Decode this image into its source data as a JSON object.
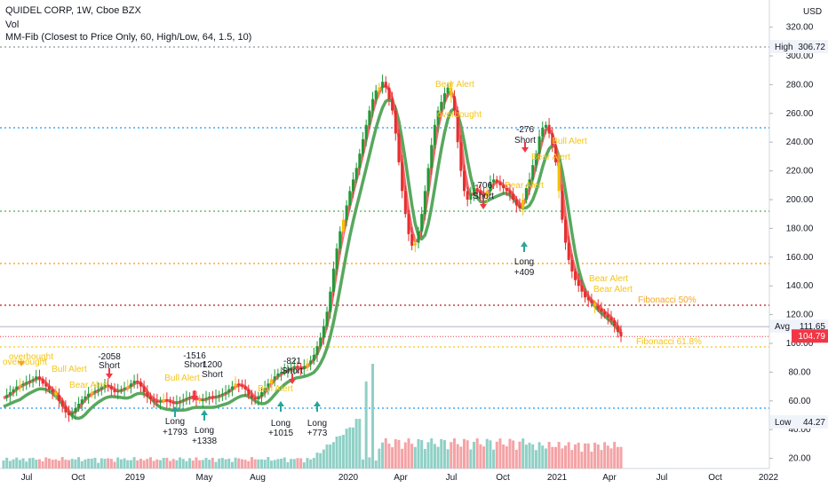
{
  "header": {
    "title": "QUIDEL CORP, 1W, Cboe BZX",
    "line2": "Vol",
    "line3": "MM-Fib (Closest to Price Only, 60, High/Low, 64, 1.5, 10)",
    "currency": "USD"
  },
  "price_axis": {
    "ticks": [
      "320.00",
      "300.00",
      "280.00",
      "260.00",
      "240.00",
      "220.00",
      "200.00",
      "180.00",
      "160.00",
      "140.00",
      "120.00",
      "100.00",
      "80.00",
      "60.00",
      "40.00",
      "20.00"
    ],
    "high_label": "High",
    "high_value": "306.72",
    "avg_label": "Avg",
    "avg_value": "111.65",
    "last_value": "104.79",
    "low_label": "Low",
    "low_value": "44.27"
  },
  "time_axis": {
    "ticks": [
      "Jul",
      "Oct",
      "2019",
      "May",
      "Aug",
      "2020",
      "Apr",
      "Jul",
      "Oct",
      "2021",
      "Apr",
      "Jul",
      "Oct",
      "2022"
    ]
  },
  "fib": {
    "fifty": "Fibonacci 50%",
    "sixtyone": "Fibonacci 61.8%"
  },
  "annotations": [
    {
      "text": "overbought",
      "color": "#f5c518"
    },
    {
      "text": "overbought",
      "color": "#f5c518"
    },
    {
      "text": "Bull Alert",
      "color": "#f5c518"
    },
    {
      "text": "-2058",
      "color": "#131722"
    },
    {
      "text": "Short",
      "color": "#131722"
    },
    {
      "text": "Bear Alert",
      "color": "#f5c518"
    },
    {
      "text": "-1516",
      "color": "#131722"
    },
    {
      "text": "Short",
      "color": "#131722"
    },
    {
      "text": "1200",
      "color": "#131722"
    },
    {
      "text": "Short",
      "color": "#131722"
    },
    {
      "text": "Bull Alert",
      "color": "#f5c518"
    },
    {
      "text": "Long",
      "color": "#131722"
    },
    {
      "text": "+1793",
      "color": "#131722"
    },
    {
      "text": "Long",
      "color": "#131722"
    },
    {
      "text": "+1338",
      "color": "#131722"
    },
    {
      "text": "-821",
      "color": "#131722"
    },
    {
      "text": "Short",
      "color": "#131722"
    },
    {
      "text": "Bull Alert",
      "color": "#f5c518"
    },
    {
      "text": "Long",
      "color": "#131722"
    },
    {
      "text": "+1015",
      "color": "#131722"
    },
    {
      "text": "Long",
      "color": "#131722"
    },
    {
      "text": "+773",
      "color": "#131722"
    },
    {
      "text": "Bear Alert",
      "color": "#f5c518"
    },
    {
      "text": "overbought",
      "color": "#f5c518"
    },
    {
      "text": "-706",
      "color": "#131722"
    },
    {
      "text": "Short",
      "color": "#131722"
    },
    {
      "text": "-276",
      "color": "#131722"
    },
    {
      "text": "Short",
      "color": "#131722"
    },
    {
      "text": "Bear Alert",
      "color": "#f5c518"
    },
    {
      "text": "Long",
      "color": "#131722"
    },
    {
      "text": "+409",
      "color": "#131722"
    },
    {
      "text": "Bull Alert",
      "color": "#f5c518"
    },
    {
      "text": "Bear Alert",
      "color": "#f5c518"
    },
    {
      "text": "Bear Alert",
      "color": "#f5c518"
    },
    {
      "text": "Bear Alert",
      "color": "#f5c518"
    }
  ],
  "colors": {
    "up": "#089981",
    "down": "#f23645",
    "bull_candle": "#1e9c38",
    "bear_candle": "#e5302f",
    "ma_fast": "#f0585d",
    "ma_slow": "#58a85e",
    "alert": "#f5c518",
    "vol_up": "#8fd0c6",
    "vol_down": "#f4a3a6",
    "last_price": "#f23645"
  }
}
